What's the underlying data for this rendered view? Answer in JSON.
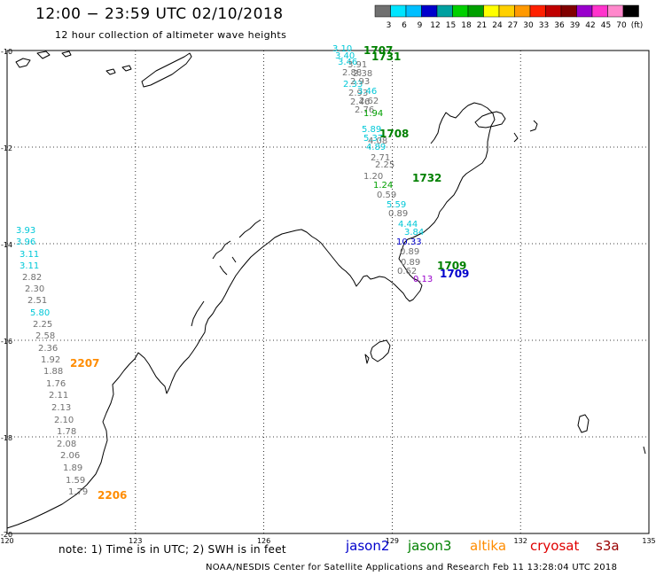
{
  "header": {
    "title": "12:00 − 23:59 UTC 02/10/2018",
    "subtitle": "12 hour collection of altimeter wave heights"
  },
  "colorbar": {
    "labels": [
      "3",
      "6",
      "9",
      "12",
      "15",
      "18",
      "21",
      "24",
      "27",
      "30",
      "33",
      "36",
      "39",
      "42",
      "45",
      "70",
      "(ft)"
    ],
    "colors": [
      "#707070",
      "#00e5ff",
      "#00bfff",
      "#0000cc",
      "#00a0a0",
      "#00d000",
      "#00a000",
      "#ffff00",
      "#ffd000",
      "#ff9900",
      "#ff2000",
      "#c00000",
      "#800000",
      "#9900cc",
      "#ff33cc",
      "#ff88cc",
      "#000000"
    ]
  },
  "map": {
    "lat_labels": [
      "-10",
      "-12",
      "-14",
      "-16",
      "-18",
      "-20"
    ],
    "lon_labels": [
      "120",
      "123",
      "126",
      "129",
      "132",
      "135"
    ],
    "coastline_color": "#000000",
    "grid_style": "dotted"
  },
  "track_times": [
    {
      "text": "1707",
      "color": "#008000"
    },
    {
      "text": "1731",
      "color": "#008000"
    },
    {
      "text": "1708",
      "color": "#008000"
    },
    {
      "text": "1732",
      "color": "#008000"
    },
    {
      "text": "1709",
      "color": "#008000"
    },
    {
      "text": "1709",
      "color": "#0000cc"
    },
    {
      "text": "2207",
      "color": "#ff8c00"
    },
    {
      "text": "2206",
      "color": "#ff8c00"
    }
  ],
  "wave_labels": [
    {
      "text": "3.10",
      "color": "#00c8d8"
    },
    {
      "text": "3.40",
      "color": "#00c8d8"
    },
    {
      "text": "3.46",
      "color": "#00c8d8"
    },
    {
      "text": "3.91",
      "color": "#707070"
    },
    {
      "text": "2.88",
      "color": "#707070"
    },
    {
      "text": "2.38",
      "color": "#707070"
    },
    {
      "text": "2.33",
      "color": "#00c8d8"
    },
    {
      "text": "2.93",
      "color": "#707070"
    },
    {
      "text": "2.93",
      "color": "#707070"
    },
    {
      "text": "3.46",
      "color": "#00c8d8"
    },
    {
      "text": "2.46",
      "color": "#707070"
    },
    {
      "text": "2.62",
      "color": "#707070"
    },
    {
      "text": "2.76",
      "color": "#707070"
    },
    {
      "text": "1.94",
      "color": "#00a000"
    },
    {
      "text": "5.89",
      "color": "#00c8d8"
    },
    {
      "text": "5.37",
      "color": "#00c8d8"
    },
    {
      "text": "4.89",
      "color": "#00c8d8"
    },
    {
      "text": "4.08",
      "color": "#707070"
    },
    {
      "text": "2.71",
      "color": "#707070"
    },
    {
      "text": "2.25",
      "color": "#707070"
    },
    {
      "text": "1.20",
      "color": "#707070"
    },
    {
      "text": "1.24",
      "color": "#00a000"
    },
    {
      "text": "0.59",
      "color": "#707070"
    },
    {
      "text": "5.59",
      "color": "#00c8d8"
    },
    {
      "text": "0.89",
      "color": "#707070"
    },
    {
      "text": "4.44",
      "color": "#00c8d8"
    },
    {
      "text": "3.84",
      "color": "#00c8d8"
    },
    {
      "text": "10.33",
      "color": "#0000cc"
    },
    {
      "text": "0.89",
      "color": "#707070"
    },
    {
      "text": "0.89",
      "color": "#707070"
    },
    {
      "text": "0.62",
      "color": "#707070"
    },
    {
      "text": "0.13",
      "color": "#9900cc"
    },
    {
      "text": "3.93",
      "color": "#00c8d8"
    },
    {
      "text": "3.96",
      "color": "#00c8d8"
    },
    {
      "text": "3.11",
      "color": "#00c8d8"
    },
    {
      "text": "3.11",
      "color": "#00c8d8"
    },
    {
      "text": "2.82",
      "color": "#707070"
    },
    {
      "text": "2.30",
      "color": "#707070"
    },
    {
      "text": "2.51",
      "color": "#707070"
    },
    {
      "text": "5.80",
      "color": "#00c8d8"
    },
    {
      "text": "2.25",
      "color": "#707070"
    },
    {
      "text": "2.58",
      "color": "#707070"
    },
    {
      "text": "2.36",
      "color": "#707070"
    },
    {
      "text": "1.92",
      "color": "#707070"
    },
    {
      "text": "1.88",
      "color": "#707070"
    },
    {
      "text": "1.76",
      "color": "#707070"
    },
    {
      "text": "2.11",
      "color": "#707070"
    },
    {
      "text": "2.13",
      "color": "#707070"
    },
    {
      "text": "2.10",
      "color": "#707070"
    },
    {
      "text": "1.78",
      "color": "#707070"
    },
    {
      "text": "2.08",
      "color": "#707070"
    },
    {
      "text": "2.06",
      "color": "#707070"
    },
    {
      "text": "1.89",
      "color": "#707070"
    },
    {
      "text": "1.59",
      "color": "#707070"
    },
    {
      "text": "1.79",
      "color": "#707070"
    }
  ],
  "note": "note:  1) Time is in UTC;  2) SWH is in feet",
  "legend": [
    {
      "label": "jason2",
      "color": "#0000cc"
    },
    {
      "label": "jason3",
      "color": "#008000"
    },
    {
      "label": "altika",
      "color": "#ff8c00"
    },
    {
      "label": "cryosat",
      "color": "#e00000"
    },
    {
      "label": "s3a",
      "color": "#990000"
    }
  ],
  "footer": "NOAA/NESDIS Center for Satellite Applications and Research     Feb 11 13:28:04 UTC 2018"
}
